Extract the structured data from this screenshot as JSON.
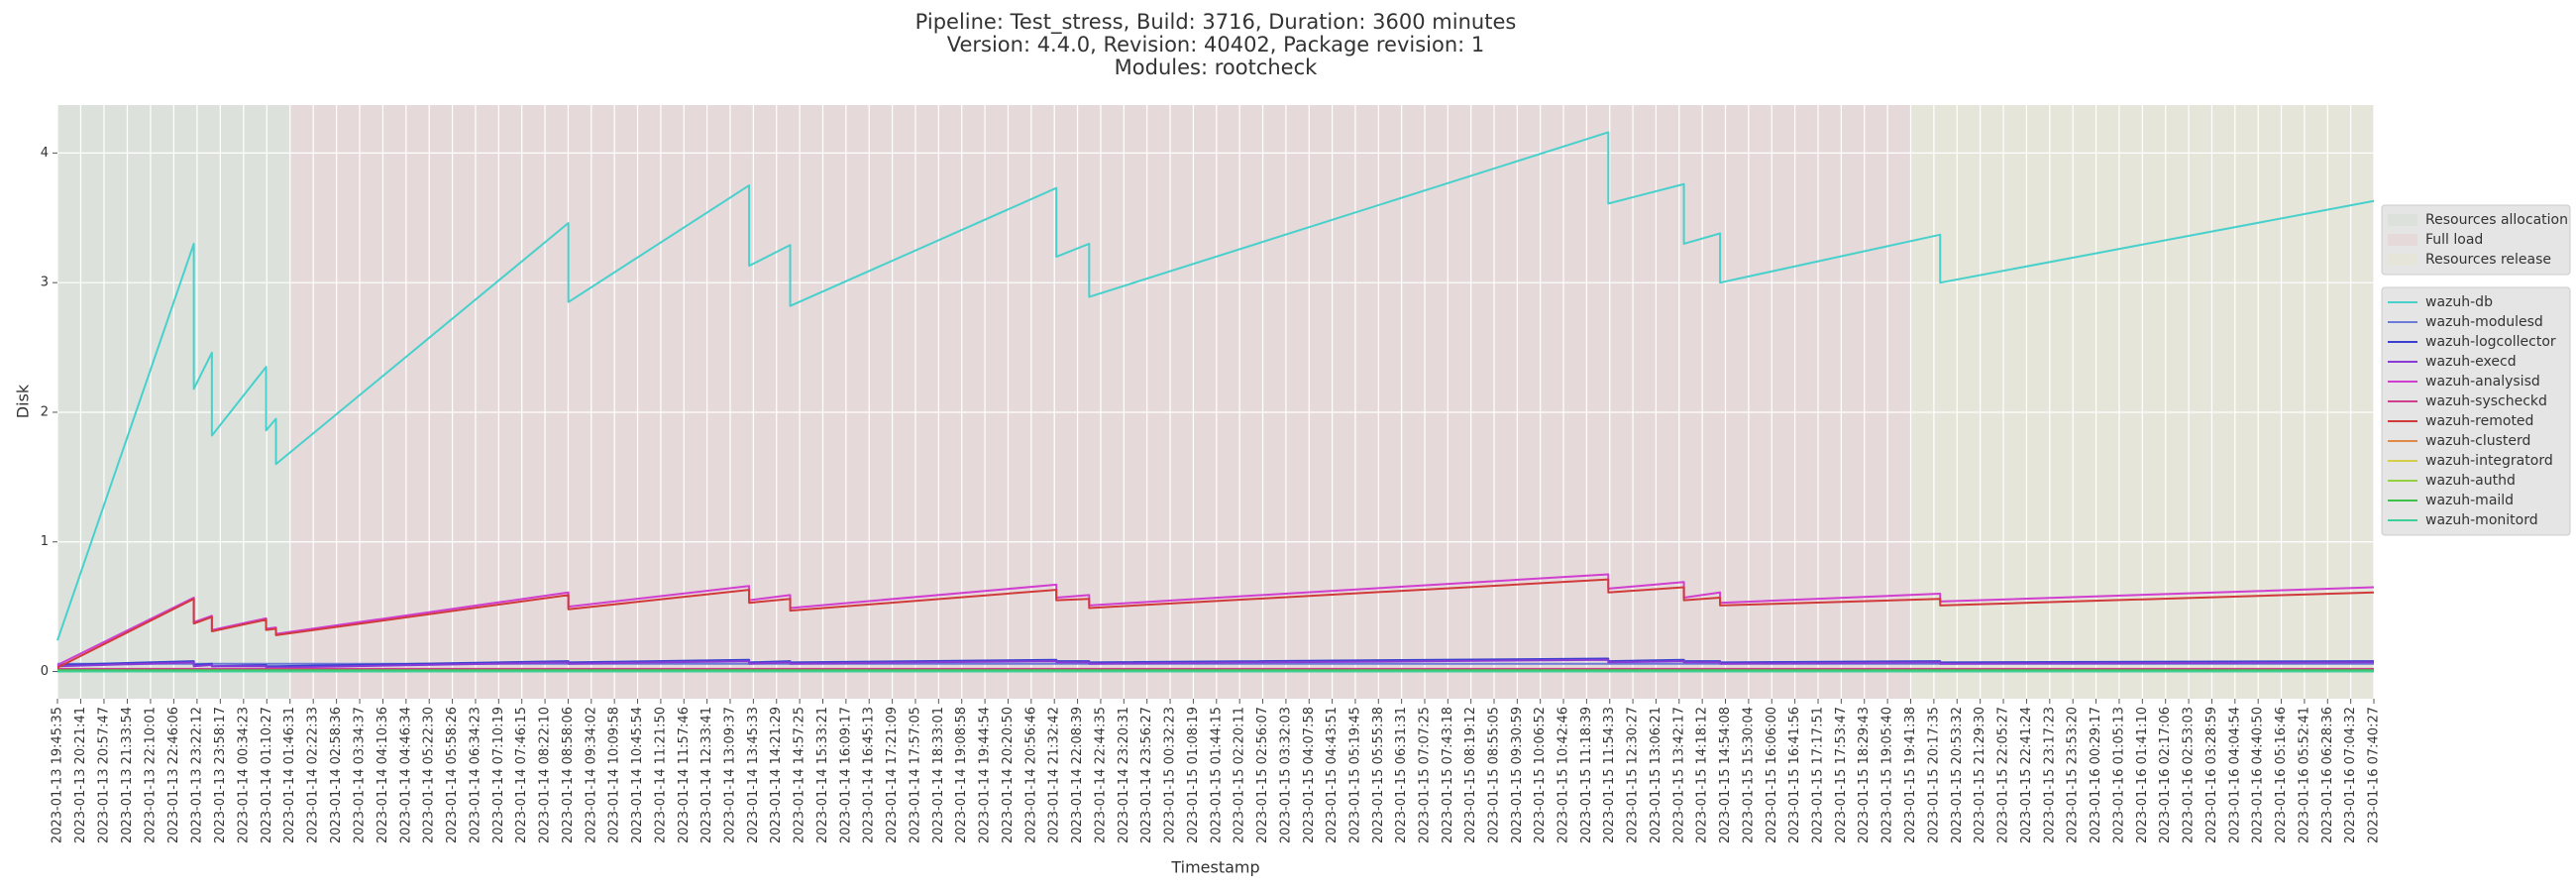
{
  "chart_data": {
    "type": "line",
    "title": [
      "Pipeline: Test_stress, Build: 3716, Duration: 3600 minutes",
      "Version: 4.4.0, Revision: 40402, Package revision: 1",
      "Modules: rootcheck"
    ],
    "xlabel": "Timestamp",
    "ylabel": "Disk",
    "grid": true,
    "legend": "center right",
    "xlim": [
      "2023-01-13 19:45:35",
      "2023-01-16 07:40:27"
    ],
    "ylim": [
      -0.21,
      4.37
    ],
    "yticks": [
      0,
      1,
      2,
      3,
      4
    ],
    "xticks": [
      "2023-01-13 19:45:35",
      "2023-01-13 20:21:41",
      "2023-01-13 20:57:47",
      "2023-01-13 21:33:54",
      "2023-01-13 22:10:01",
      "2023-01-13 22:46:06",
      "2023-01-13 23:22:12",
      "2023-01-13 23:58:17",
      "2023-01-14 00:34:23",
      "2023-01-14 01:10:27",
      "2023-01-14 01:46:31",
      "2023-01-14 02:22:33",
      "2023-01-14 02:58:36",
      "2023-01-14 03:34:37",
      "2023-01-14 04:10:36",
      "2023-01-14 04:46:34",
      "2023-01-14 05:22:30",
      "2023-01-14 05:58:26",
      "2023-01-14 06:34:23",
      "2023-01-14 07:10:19",
      "2023-01-14 07:46:15",
      "2023-01-14 08:22:10",
      "2023-01-14 08:58:06",
      "2023-01-14 09:34:02",
      "2023-01-14 10:09:58",
      "2023-01-14 10:45:54",
      "2023-01-14 11:21:50",
      "2023-01-14 11:57:46",
      "2023-01-14 12:33:41",
      "2023-01-14 13:09:37",
      "2023-01-14 13:45:33",
      "2023-01-14 14:21:29",
      "2023-01-14 14:57:25",
      "2023-01-14 15:33:21",
      "2023-01-14 16:09:17",
      "2023-01-14 16:45:13",
      "2023-01-14 17:21:09",
      "2023-01-14 17:57:05",
      "2023-01-14 18:33:01",
      "2023-01-14 19:08:58",
      "2023-01-14 19:44:54",
      "2023-01-14 20:20:50",
      "2023-01-14 20:56:46",
      "2023-01-14 21:32:42",
      "2023-01-14 22:08:39",
      "2023-01-14 22:44:35",
      "2023-01-14 23:20:31",
      "2023-01-14 23:56:27",
      "2023-01-15 00:32:23",
      "2023-01-15 01:08:19",
      "2023-01-15 01:44:15",
      "2023-01-15 02:20:11",
      "2023-01-15 02:56:07",
      "2023-01-15 03:32:03",
      "2023-01-15 04:07:58",
      "2023-01-15 04:43:51",
      "2023-01-15 05:19:45",
      "2023-01-15 05:55:38",
      "2023-01-15 06:31:31",
      "2023-01-15 07:07:25",
      "2023-01-15 07:43:18",
      "2023-01-15 08:19:12",
      "2023-01-15 08:55:05",
      "2023-01-15 09:30:59",
      "2023-01-15 10:06:52",
      "2023-01-15 10:42:46",
      "2023-01-15 11:18:39",
      "2023-01-15 11:54:33",
      "2023-01-15 12:30:27",
      "2023-01-15 13:06:21",
      "2023-01-15 13:42:17",
      "2023-01-15 14:18:12",
      "2023-01-15 14:54:08",
      "2023-01-15 15:30:04",
      "2023-01-15 16:06:00",
      "2023-01-15 16:41:56",
      "2023-01-15 17:17:51",
      "2023-01-15 17:53:47",
      "2023-01-15 18:29:43",
      "2023-01-15 19:05:40",
      "2023-01-15 19:41:38",
      "2023-01-15 20:17:35",
      "2023-01-15 20:53:32",
      "2023-01-15 21:29:30",
      "2023-01-15 22:05:27",
      "2023-01-15 22:41:24",
      "2023-01-15 23:17:23",
      "2023-01-15 23:53:20",
      "2023-01-16 00:29:17",
      "2023-01-16 01:05:13",
      "2023-01-16 01:41:10",
      "2023-01-16 02:17:06",
      "2023-01-16 02:53:03",
      "2023-01-16 03:28:59",
      "2023-01-16 04:04:54",
      "2023-01-16 04:40:50",
      "2023-01-16 05:16:46",
      "2023-01-16 05:52:41",
      "2023-01-16 06:28:36",
      "2023-01-16 07:04:32",
      "2023-01-16 07:40:27"
    ],
    "phases": [
      {
        "name": "Resources allocation",
        "color": "#dce2db",
        "start": "2023-01-13 19:45:35",
        "end": "2023-01-14 01:46:31"
      },
      {
        "name": "Full load",
        "color": "#e6d9da",
        "start": "2023-01-14 01:46:31",
        "end": "2023-01-15 19:41:38"
      },
      {
        "name": "Resources release",
        "color": "#e5e5d9",
        "start": "2023-01-15 19:41:38",
        "end": "2023-01-16 07:40:27"
      }
    ],
    "x": [
      "2023-01-13 19:45:35",
      "2023-01-13 23:17:11",
      "2023-01-13 23:17:11",
      "2023-01-13 23:45:15",
      "2023-01-13 23:45:15",
      "2023-01-14 01:09:23",
      "2023-01-14 01:09:23",
      "2023-01-14 01:24:41",
      "2023-01-14 01:24:41",
      "2023-01-14 08:58:29",
      "2023-01-14 08:58:29",
      "2023-01-14 13:38:59",
      "2023-01-14 13:38:59",
      "2023-01-14 14:42:41",
      "2023-01-14 14:42:41",
      "2023-01-14 21:35:47",
      "2023-01-14 21:35:47",
      "2023-01-14 22:26:41",
      "2023-01-14 22:26:41",
      "2023-01-15 11:52:23",
      "2023-01-15 11:52:23",
      "2023-01-15 13:49:41",
      "2023-01-15 13:49:41",
      "2023-01-15 14:45:47",
      "2023-01-15 14:45:47",
      "2023-01-15 20:27:23",
      "2023-01-15 20:27:23",
      "2023-01-16 07:40:27"
    ],
    "series": [
      {
        "name": "wazuh-db",
        "color": "#48d1cc",
        "values": [
          0.24,
          3.3,
          2.18,
          2.46,
          1.82,
          2.35,
          1.86,
          1.95,
          1.6,
          3.46,
          2.85,
          3.75,
          3.13,
          3.29,
          2.82,
          3.73,
          3.2,
          3.3,
          2.89,
          4.16,
          3.61,
          3.76,
          3.3,
          3.38,
          3.0,
          3.37,
          3.0,
          3.63
        ]
      },
      {
        "name": "wazuh-modulesd",
        "color": "#6b7bd6",
        "values": [
          0.06,
          0.06,
          0.06,
          0.06,
          0.06,
          0.06,
          0.06,
          0.06,
          0.06,
          0.06,
          0.06,
          0.06,
          0.06,
          0.06,
          0.06,
          0.06,
          0.06,
          0.06,
          0.06,
          0.06,
          0.06,
          0.06,
          0.06,
          0.06,
          0.06,
          0.06,
          0.06,
          0.06
        ]
      },
      {
        "name": "wazuh-logcollector",
        "color": "#3a3fcf",
        "values": [
          0.05,
          0.08,
          0.05,
          0.06,
          0.04,
          0.05,
          0.04,
          0.04,
          0.04,
          0.08,
          0.07,
          0.09,
          0.07,
          0.08,
          0.07,
          0.09,
          0.08,
          0.08,
          0.07,
          0.1,
          0.08,
          0.09,
          0.08,
          0.08,
          0.07,
          0.08,
          0.07,
          0.08
        ]
      },
      {
        "name": "wazuh-execd",
        "color": "#8a3bd6",
        "values": [
          0.04,
          0.07,
          0.04,
          0.05,
          0.04,
          0.04,
          0.03,
          0.03,
          0.03,
          0.07,
          0.06,
          0.08,
          0.06,
          0.07,
          0.06,
          0.08,
          0.07,
          0.07,
          0.06,
          0.09,
          0.07,
          0.08,
          0.07,
          0.07,
          0.06,
          0.07,
          0.06,
          0.07
        ]
      },
      {
        "name": "wazuh-analysisd",
        "color": "#d03fd0",
        "values": [
          0.05,
          0.57,
          0.38,
          0.43,
          0.32,
          0.41,
          0.33,
          0.34,
          0.29,
          0.61,
          0.5,
          0.66,
          0.55,
          0.59,
          0.49,
          0.67,
          0.57,
          0.59,
          0.51,
          0.75,
          0.64,
          0.69,
          0.57,
          0.61,
          0.53,
          0.6,
          0.54,
          0.65
        ]
      },
      {
        "name": "wazuh-syscheckd",
        "color": "#d03f8e",
        "values": [
          0.02,
          0.02,
          0.02,
          0.02,
          0.02,
          0.02,
          0.02,
          0.02,
          0.02,
          0.02,
          0.02,
          0.02,
          0.02,
          0.02,
          0.02,
          0.02,
          0.02,
          0.02,
          0.02,
          0.02,
          0.02,
          0.02,
          0.02,
          0.02,
          0.02,
          0.02,
          0.02,
          0.02
        ]
      },
      {
        "name": "wazuh-remoted",
        "color": "#d03a3a",
        "values": [
          0.03,
          0.56,
          0.37,
          0.42,
          0.31,
          0.4,
          0.32,
          0.33,
          0.28,
          0.59,
          0.48,
          0.63,
          0.53,
          0.56,
          0.47,
          0.63,
          0.55,
          0.56,
          0.49,
          0.71,
          0.61,
          0.65,
          0.55,
          0.57,
          0.51,
          0.56,
          0.51,
          0.61
        ]
      },
      {
        "name": "wazuh-clusterd",
        "color": "#e08a4a",
        "values": [
          0,
          0,
          0,
          0,
          0,
          0,
          0,
          0,
          0,
          0,
          0,
          0,
          0,
          0,
          0,
          0,
          0,
          0,
          0,
          0,
          0,
          0,
          0,
          0,
          0,
          0,
          0,
          0
        ]
      },
      {
        "name": "wazuh-integratord",
        "color": "#d4cf4a",
        "values": [
          0,
          0,
          0,
          0,
          0,
          0,
          0,
          0,
          0,
          0,
          0,
          0,
          0,
          0,
          0,
          0,
          0,
          0,
          0,
          0,
          0,
          0,
          0,
          0,
          0,
          0,
          0,
          0
        ]
      },
      {
        "name": "wazuh-authd",
        "color": "#95d040",
        "values": [
          0,
          0,
          0,
          0,
          0,
          0,
          0,
          0,
          0,
          0,
          0,
          0,
          0,
          0,
          0,
          0,
          0,
          0,
          0,
          0,
          0,
          0,
          0,
          0,
          0,
          0,
          0,
          0
        ]
      },
      {
        "name": "wazuh-maild",
        "color": "#3fc24a",
        "values": [
          0.01,
          0.01,
          0.01,
          0.01,
          0.01,
          0.01,
          0.01,
          0.01,
          0.01,
          0.01,
          0.01,
          0.01,
          0.01,
          0.01,
          0.01,
          0.01,
          0.01,
          0.01,
          0.01,
          0.01,
          0.01,
          0.01,
          0.01,
          0.01,
          0.01,
          0.01,
          0.01,
          0.01
        ]
      },
      {
        "name": "wazuh-monitord",
        "color": "#3fd09a",
        "values": [
          0,
          0,
          0,
          0,
          0,
          0,
          0,
          0,
          0,
          0,
          0,
          0,
          0,
          0,
          0,
          0,
          0,
          0,
          0,
          0,
          0,
          0,
          0,
          0,
          0,
          0,
          0,
          0
        ]
      }
    ]
  }
}
